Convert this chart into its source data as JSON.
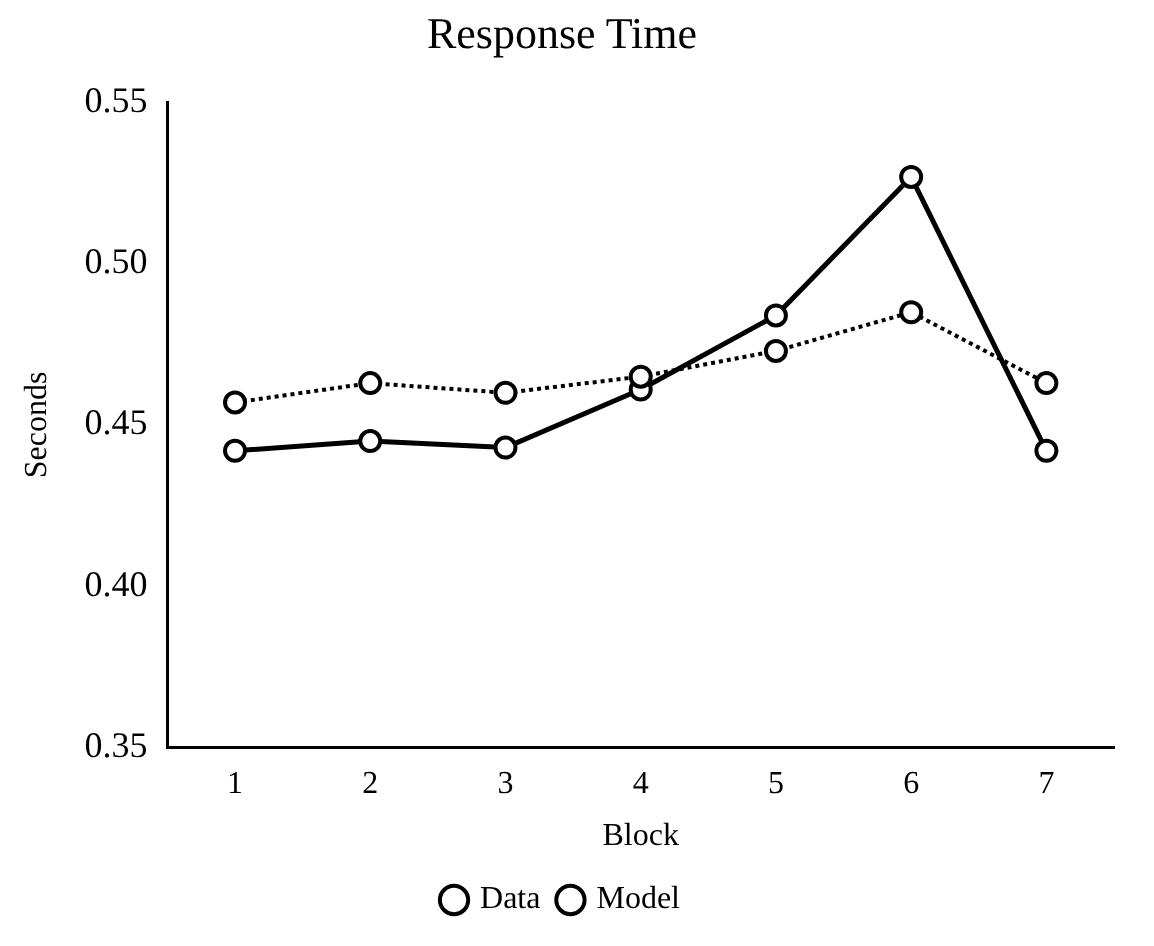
{
  "chart_data": {
    "type": "line",
    "title": "Response Time",
    "xlabel": "Block",
    "ylabel": "Seconds",
    "categories": [
      "1",
      "2",
      "3",
      "4",
      "5",
      "6",
      "7"
    ],
    "series": [
      {
        "name": "Data",
        "color": "#000000",
        "line_style": "dotted",
        "values": [
          0.457,
          0.463,
          0.46,
          0.465,
          0.473,
          0.485,
          0.463
        ]
      },
      {
        "name": "Model",
        "color": "#000000",
        "line_style": "solid",
        "values": [
          0.442,
          0.445,
          0.443,
          0.461,
          0.484,
          0.527,
          0.442
        ]
      }
    ],
    "ylim": [
      0.35,
      0.55
    ],
    "yticks": [
      {
        "value": 0.35,
        "label": "0.35"
      },
      {
        "value": 0.4,
        "label": "0.40"
      },
      {
        "value": 0.45,
        "label": "0.45"
      },
      {
        "value": 0.5,
        "label": "0.50"
      },
      {
        "value": 0.55,
        "label": "0.55"
      }
    ],
    "grid": false,
    "legend": "bottom",
    "marker": "circle"
  }
}
